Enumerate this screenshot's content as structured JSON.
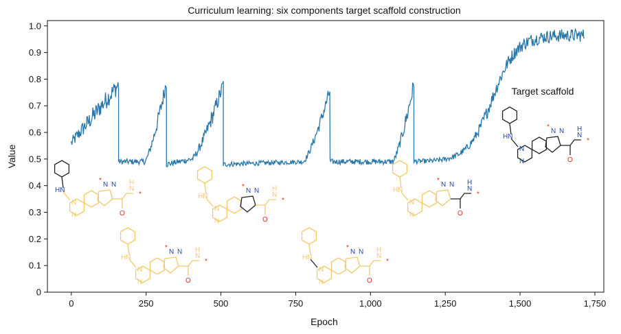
{
  "chart_data": {
    "type": "line",
    "title": "Curriculum learning: six components target scaffold construction",
    "xlabel": "Epoch",
    "ylabel": "Value",
    "xlim": [
      -80,
      1780
    ],
    "ylim": [
      0,
      1.02
    ],
    "x_ticks": [
      0,
      250,
      500,
      750,
      1000,
      1250,
      1500,
      1750
    ],
    "x_tick_labels": [
      "0",
      "250",
      "500",
      "750",
      "1,000",
      "1,250",
      "1,500",
      "1,750"
    ],
    "y_ticks": [
      0,
      0.1,
      0.2,
      0.3,
      0.4,
      0.5,
      0.6,
      0.7,
      0.8,
      0.9,
      1.0
    ],
    "y_tick_labels": [
      "0",
      "0.1",
      "0.2",
      "0.3",
      "0.4",
      "0.5",
      "0.6",
      "0.7",
      "0.8",
      "0.9",
      "1.0"
    ],
    "grid": false,
    "series": [
      {
        "color": "#2a77a8",
        "segments": [
          {
            "x0": 0,
            "x1": 158,
            "start": 0.56,
            "plateau": 0.56,
            "end": 0.78,
            "shape": "ramp",
            "noise": 0.035
          },
          {
            "x0": 158,
            "x1": 318,
            "start": 0.49,
            "plateau": 0.49,
            "end": 0.79,
            "shape": "hockey",
            "knee": 0.55,
            "noise": 0.03
          },
          {
            "x0": 318,
            "x1": 508,
            "start": 0.48,
            "plateau": 0.5,
            "end": 0.78,
            "shape": "hockey",
            "knee": 0.45,
            "noise": 0.03
          },
          {
            "x0": 508,
            "x1": 865,
            "start": 0.48,
            "plateau": 0.49,
            "end": 0.76,
            "shape": "hockey",
            "knee": 0.75,
            "noise": 0.025
          },
          {
            "x0": 865,
            "x1": 1145,
            "start": 0.49,
            "plateau": 0.49,
            "end": 0.78,
            "shape": "hockey",
            "knee": 0.75,
            "noise": 0.03
          },
          {
            "x0": 1145,
            "x1": 1715,
            "start": 0.49,
            "plateau": 0.49,
            "end": 0.965,
            "shape": "sigmoid",
            "center": 0.46,
            "noise": 0.025
          }
        ]
      }
    ]
  },
  "annotation": {
    "target_label": "Target scaffold"
  },
  "molecule": {
    "labels": [
      "N",
      "N",
      "N",
      "N",
      "HN",
      "N",
      "H",
      "O",
      "*",
      "*"
    ],
    "highlight_color": "#f5c96a",
    "blue": "#1f3fbf",
    "red": "#e0301e",
    "black": "#222222"
  },
  "molecule_highlights": [
    [
      "left_ring",
      "fused_ring",
      "five_ring",
      "pyrazole",
      "amide"
    ],
    [
      "aniline",
      "left_ring",
      "fused_ring",
      "five_ring",
      "pyrazole",
      "amide"
    ],
    [
      "aniline",
      "left_ring",
      "fused_ring",
      "five_ring",
      "amide"
    ],
    [
      "aniline",
      "left_ring",
      "fused_ring",
      "pyrazole",
      "amide"
    ],
    [
      "aniline",
      "left_ring",
      "fused_ring",
      "five_ring",
      "pyrazole"
    ],
    []
  ]
}
